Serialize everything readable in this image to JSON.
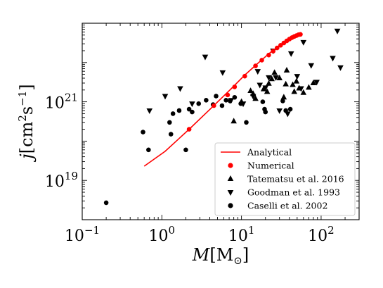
{
  "chart_data": {
    "type": "scatter",
    "xscale": "log",
    "yscale": "log",
    "xlim": [
      0.1,
      300
    ],
    "ylim": [
      1e+18,
      1e+23
    ],
    "xlabel": {
      "main": "M",
      "bracket_open": "[M",
      "sub": "⊙",
      "bracket_close": "]"
    },
    "ylabel": {
      "main": "j",
      "bracket_open": "[cm",
      "sup1": "2",
      "mid": "s",
      "sup2": "−1",
      "bracket_close": "]"
    },
    "xticks": [
      {
        "value": 0.1,
        "base": "10",
        "exp": "−1"
      },
      {
        "value": 1,
        "base": "10",
        "exp": "0"
      },
      {
        "value": 10,
        "base": "10",
        "exp": "1"
      },
      {
        "value": 100,
        "base": "10",
        "exp": "2"
      }
    ],
    "yticks": [
      {
        "value": 1e+19,
        "base": "10",
        "exp": "19"
      },
      {
        "value": 1e+21,
        "base": "10",
        "exp": "21"
      }
    ],
    "legend_position": "lower-right",
    "series": [
      {
        "name": "Analytical",
        "kind": "line",
        "color": "#ff0000",
        "x": [
          0.6,
          1.1,
          2.2,
          4.2,
          7.5,
          11,
          16,
          23,
          32,
          42,
          52,
          57
        ],
        "y": [
          2.3e+19,
          5.5e+19,
          2e+20,
          7e+20,
          2.2e+21,
          4.8e+21,
          9.5e+21,
          1.8e+22,
          3e+22,
          4.2e+22,
          5e+22,
          5.2e+22
        ]
      },
      {
        "name": "Numerical",
        "kind": "circle",
        "color": "#ff0000",
        "x": [
          2.2,
          4.5,
          6.7,
          8.2,
          11,
          15,
          18,
          22,
          25,
          28,
          31,
          34,
          37,
          40,
          43,
          46,
          49,
          52,
          55
        ],
        "y": [
          2e+20,
          8e+20,
          1.5e+21,
          2.4e+21,
          4.5e+21,
          8.2e+21,
          1.15e+22,
          1.55e+22,
          1.95e+22,
          2.35e+22,
          2.75e+22,
          3.15e+22,
          3.55e+22,
          3.95e+22,
          4.3e+22,
          4.6e+22,
          4.85e+22,
          5.1e+22,
          5.2e+22
        ]
      },
      {
        "name": "Tatematsu et al. 2016",
        "kind": "triangle-up",
        "color": "#000000",
        "x": [
          8,
          10,
          13,
          14,
          15,
          19,
          21,
          22,
          24,
          26,
          30,
          34,
          36,
          37,
          44,
          46,
          49,
          53,
          60,
          70,
          80
        ],
        "y": [
          3.2e+20,
          1e+21,
          1.9e+21,
          1.6e+21,
          1.2e+21,
          2.1e+21,
          1.8e+21,
          2.9e+21,
          3.8e+21,
          5.5e+21,
          4e+21,
          1.3e+21,
          2.8e+21,
          6.3e+21,
          2.7e+21,
          1.8e+21,
          3.3e+21,
          2.2e+21,
          1.7e+21,
          2.3e+21,
          3e+21
        ]
      },
      {
        "name": "Goodman et al. 1993",
        "kind": "triangle-down",
        "color": "#000000",
        "x": [
          0.7,
          1.1,
          1.7,
          2.4,
          3.5,
          5.8,
          7.4,
          10.5,
          14,
          16,
          17,
          20,
          22,
          25,
          27,
          30,
          38,
          42,
          50,
          56,
          60,
          75,
          88,
          140,
          160,
          175
        ],
        "y": [
          6e+20,
          1.4e+21,
          2.2e+21,
          9e+20,
          1.4e+22,
          5.6e+21,
          1.1e+21,
          9e+20,
          1.4e+21,
          6e+21,
          2.7e+21,
          2.3e+21,
          4.2e+21,
          2e+22,
          4.2e+21,
          6e+20,
          5e+20,
          1.7e+22,
          4.5e+21,
          2.2e+21,
          3.3e+22,
          8.5e+21,
          3.2e+21,
          1.3e+22,
          6.4e+22,
          7.5e+21
        ]
      },
      {
        "name": "Caselli et al. 2002",
        "kind": "circle",
        "color": "#000000",
        "x": [
          0.2,
          0.58,
          0.68,
          1.25,
          1.3,
          1.38,
          1.65,
          2.0,
          2.2,
          2.4,
          2.9,
          3.6,
          4.4,
          4.8,
          5.7,
          6.4,
          7.2,
          8.2,
          9.8,
          11.5,
          18.5,
          19.5,
          20,
          33,
          36,
          41
        ],
        "y": [
          2.7e+18,
          1.7e+20,
          6e+19,
          3e+20,
          1.5e+20,
          5e+20,
          6e+20,
          6e+19,
          6.5e+20,
          5.5e+20,
          9e+20,
          1.1e+21,
          8.5e+20,
          1.4e+21,
          8e+20,
          1.1e+21,
          1.05e+21,
          1.3e+21,
          9e+20,
          3e+20,
          1e+21,
          6.5e+20,
          5.5e+20,
          1.05e+21,
          6e+20,
          6.5e+20
        ]
      }
    ]
  }
}
